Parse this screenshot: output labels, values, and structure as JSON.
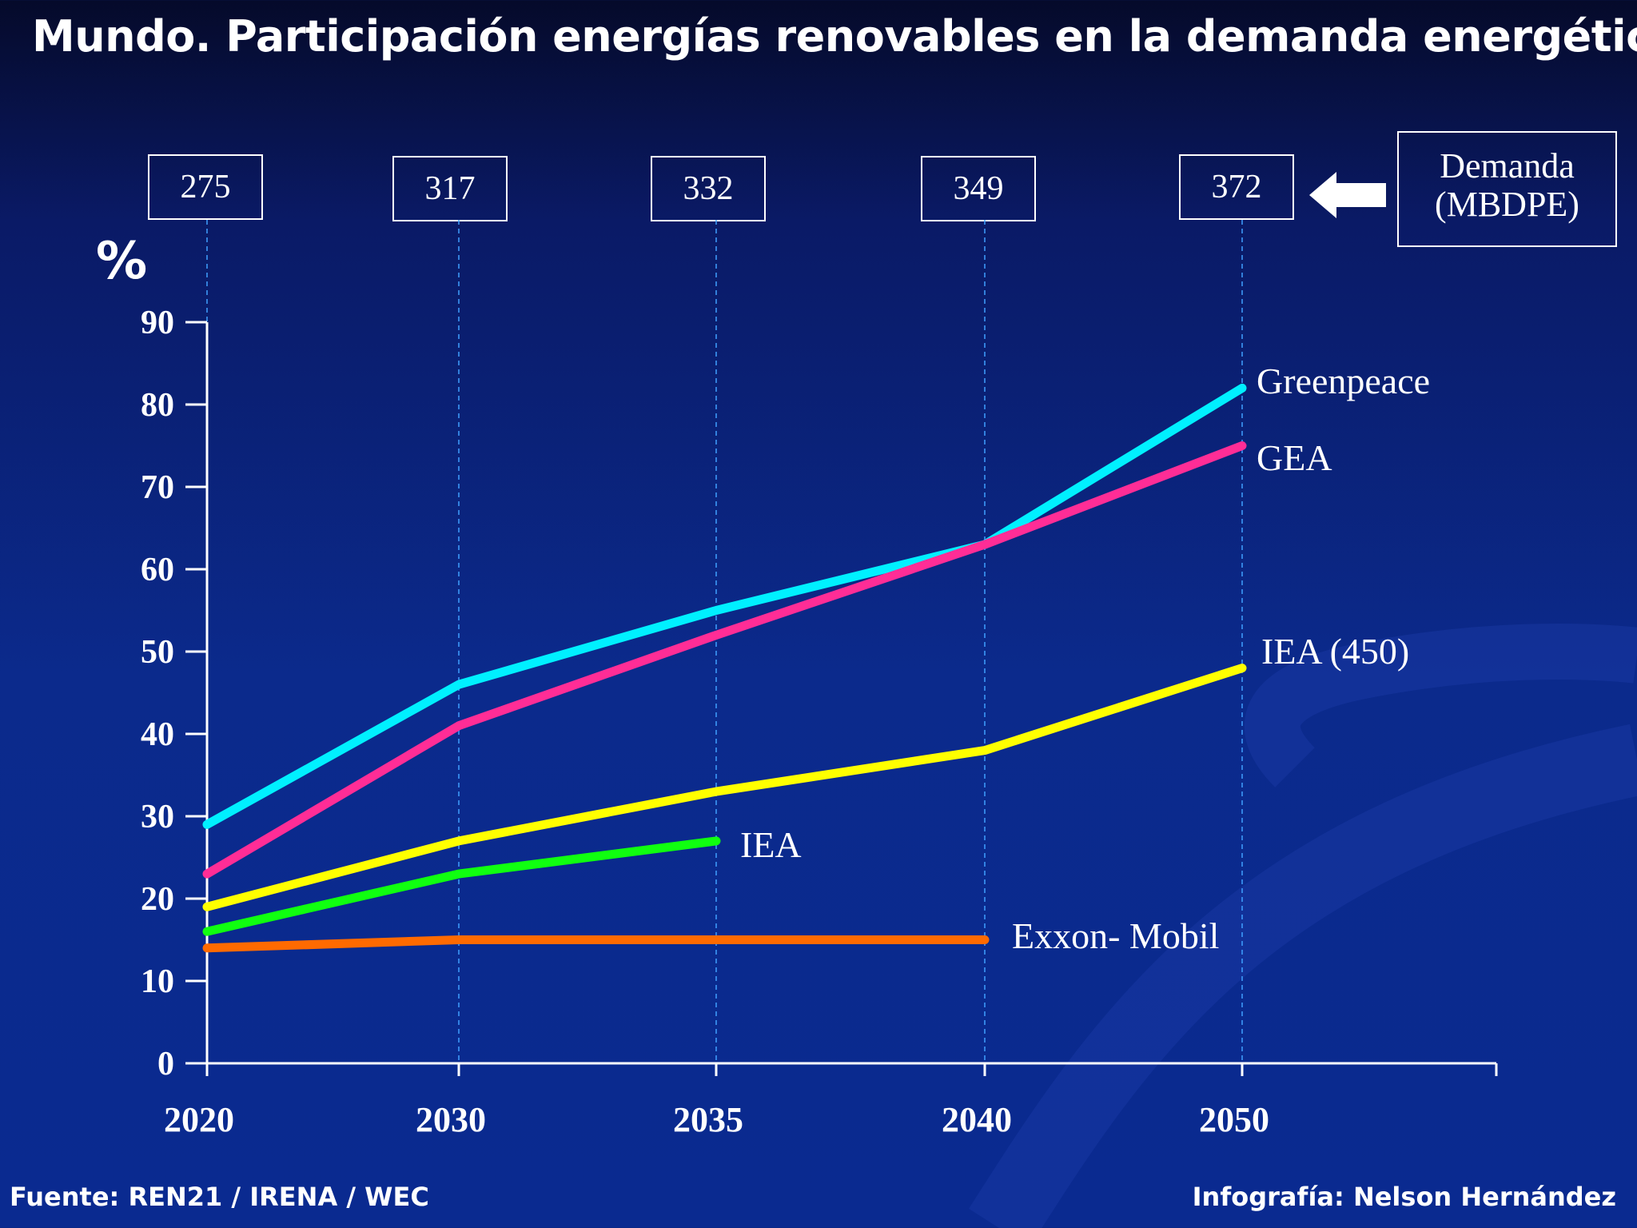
{
  "title": "Mundo. Participación energías renovables en la demanda energética",
  "y_unit": "%",
  "demand": {
    "values": [
      "275",
      "317",
      "332",
      "349",
      "372"
    ],
    "label_line1": "Demanda",
    "label_line2": "(MBDPE)"
  },
  "footer": {
    "source": "Fuente:  REN21 / IRENA / WEC",
    "credit": "Infografía: Nelson Hernández"
  },
  "colors": {
    "Greenpeace": "#00f0ff",
    "GEA": "#ff2d96",
    "IEA (450)": "#ffff00",
    "IEA": "#10ff10",
    "Exxon- Mobil": "#ff6a00"
  },
  "chart_data": {
    "type": "line",
    "title": "Mundo. Participación energías renovables en la demanda energética",
    "ylabel": "%",
    "xlabel": "",
    "categories": [
      "2020",
      "2030",
      "2035",
      "2040",
      "2050"
    ],
    "yticks": [
      "0",
      "10",
      "20",
      "30",
      "40",
      "50",
      "60",
      "70",
      "80",
      "90"
    ],
    "ylim": [
      0,
      90
    ],
    "series": [
      {
        "name": "Greenpeace",
        "values": [
          29,
          46,
          55,
          63,
          82
        ]
      },
      {
        "name": "GEA",
        "values": [
          23,
          41,
          52,
          63,
          75
        ]
      },
      {
        "name": "IEA (450)",
        "values": [
          19,
          27,
          33,
          38,
          48
        ]
      },
      {
        "name": "IEA",
        "values": [
          16,
          23,
          27,
          null,
          null
        ]
      },
      {
        "name": "Exxon- Mobil",
        "values": [
          14,
          15,
          15,
          15,
          null
        ]
      }
    ]
  }
}
